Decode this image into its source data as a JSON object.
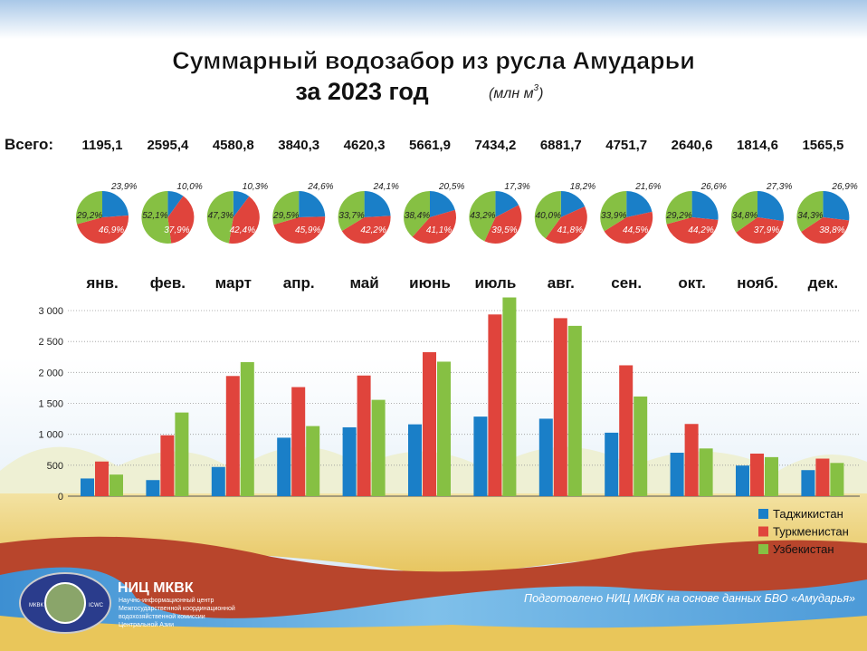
{
  "title_line1": "Суммарный водозабор из русла Амударьи",
  "title_line2": "за 2023 год",
  "unit": "(млн м",
  "unit_sup": "3",
  "unit_close": ")",
  "total_label": "Всего:",
  "footer": "Подготовлено НИЦ МКВК на основе данных БВО «Амударья»",
  "org": {
    "name": "НИЦ МКВК",
    "desc": [
      "Научно-информационный центр",
      "Межгосударственной координационной",
      "водохозяйственной комиссии",
      "Центральной Азии"
    ],
    "logo_text": [
      "МКВК",
      "ICWC"
    ]
  },
  "colors": {
    "tj": "#1a7fc8",
    "tk": "#e0443c",
    "uz": "#86c043"
  },
  "chart_data": {
    "type": "bar",
    "title": "Суммарный водозабор из русла Амударьи за 2023 год (млн м3)",
    "categories": [
      "янв.",
      "фев.",
      "март",
      "апр.",
      "май",
      "июнь",
      "июль",
      "авг.",
      "сен.",
      "окт.",
      "нояб.",
      "дек."
    ],
    "totals": [
      "1195,1",
      "2595,4",
      "4580,8",
      "3840,3",
      "4620,3",
      "5661,9",
      "7434,2",
      "6881,7",
      "4751,7",
      "2640,6",
      "1814,6",
      "1565,5"
    ],
    "series": [
      {
        "name": "Таджикистан",
        "key": "tj",
        "values": [
          286,
          260,
          472,
          945,
          1113,
          1161,
          1286,
          1252,
          1026,
          702,
          495,
          421
        ],
        "shares": [
          "23,9%",
          "10,0%",
          "10,3%",
          "24,6%",
          "24,1%",
          "20,5%",
          "17,3%",
          "18,2%",
          "21,6%",
          "26,6%",
          "27,3%",
          "26,9%"
        ]
      },
      {
        "name": "Туркменистан",
        "key": "tk",
        "values": [
          560,
          984,
          1942,
          1763,
          1950,
          2327,
          2937,
          2877,
          2115,
          1167,
          688,
          607
        ],
        "shares": [
          "46,9%",
          "37,9%",
          "42,4%",
          "45,9%",
          "42,2%",
          "41,1%",
          "39,5%",
          "41,8%",
          "44,5%",
          "44,2%",
          "37,9%",
          "38,8%"
        ]
      },
      {
        "name": "Узбекистан",
        "key": "uz",
        "values": [
          349,
          1352,
          2167,
          1133,
          1557,
          2174,
          3212,
          2753,
          1611,
          771,
          631,
          537
        ],
        "shares": [
          "29,2%",
          "52,1%",
          "47,3%",
          "29,5%",
          "33,7%",
          "38,4%",
          "43,2%",
          "40,0%",
          "33,9%",
          "29,2%",
          "34,8%",
          "34,3%"
        ]
      }
    ],
    "yticks": [
      "0",
      "500",
      "1 000",
      "1 500",
      "2 000",
      "2 500",
      "3 000"
    ],
    "ytick_values": [
      0,
      500,
      1000,
      1500,
      2000,
      2500,
      3000
    ],
    "ylim": [
      0,
      3000
    ],
    "grid": true,
    "legend": "bottom-right"
  }
}
